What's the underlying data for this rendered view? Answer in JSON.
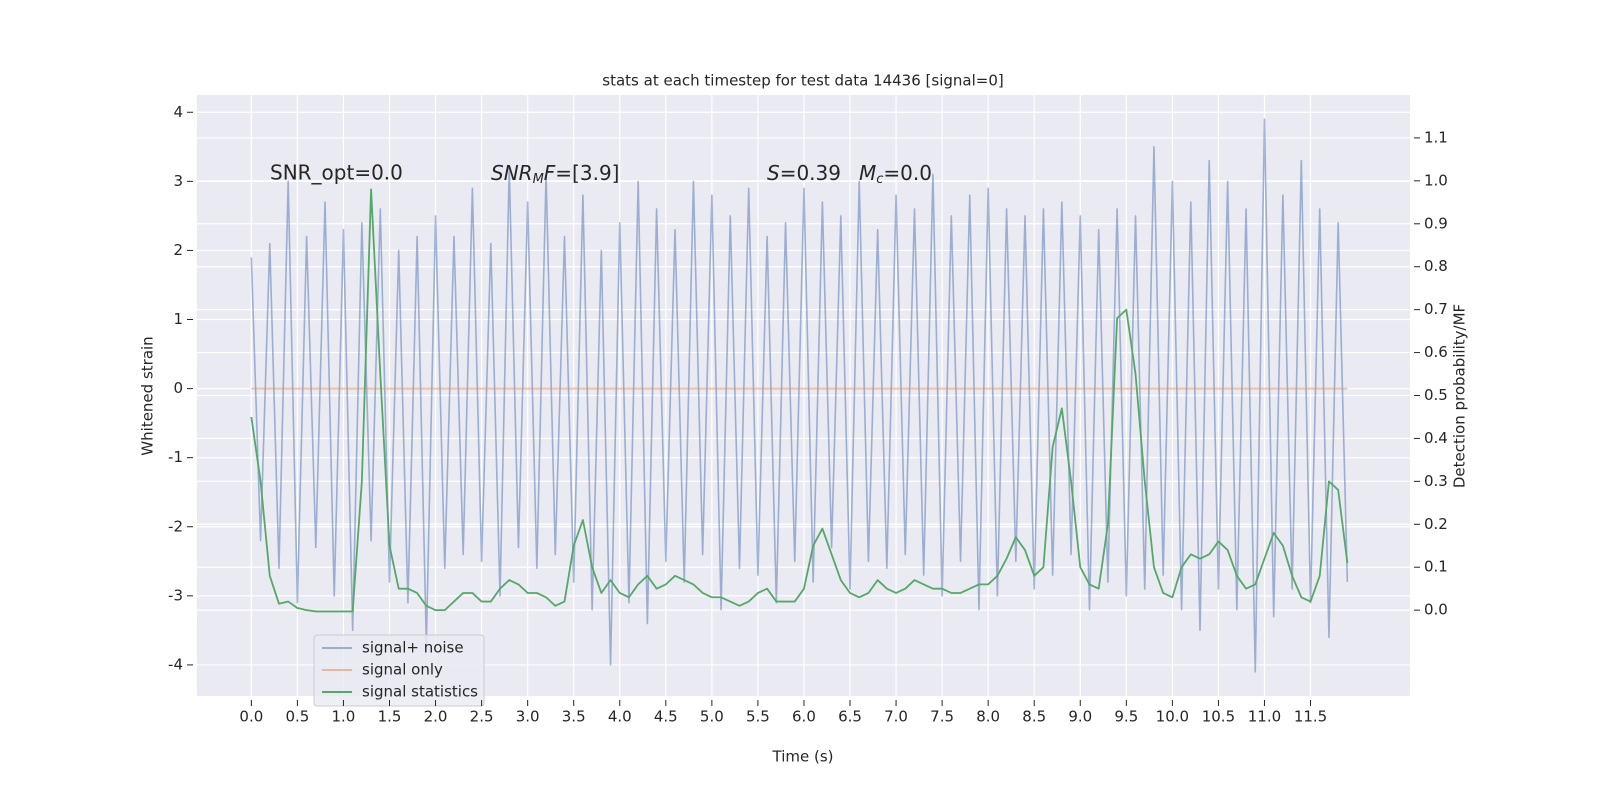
{
  "chart_data": {
    "type": "line",
    "title": "stats at each timestep for test data 14436 [signal=0]",
    "xlabel": "Time (s)",
    "ylabel": "Whitened strain",
    "y2label": "Detection probability/MF",
    "annotations": [
      "SNR_opt=0.0",
      "SNR",
      "M",
      "F",
      "=[3.9]",
      "S",
      "=0.39",
      "M",
      "c",
      "=0.0"
    ],
    "xlim": [
      -0.59,
      12.58
    ],
    "ylim": [
      -4.45,
      4.25
    ],
    "y2lim": [
      -0.2,
      1.2
    ],
    "xticks": [
      {
        "value": 0,
        "label": "0.0"
      },
      0.5,
      {
        "value": 1,
        "label": "1.0"
      },
      1.5,
      {
        "value": 2,
        "label": "2.0"
      },
      2.5,
      {
        "value": 3,
        "label": "3.0"
      },
      3.5,
      {
        "value": 4,
        "label": "4.0"
      },
      4.5,
      {
        "value": 5,
        "label": "5.0"
      },
      5.5,
      {
        "value": 6,
        "label": "6.0"
      },
      6.5,
      {
        "value": 7,
        "label": "7.0"
      },
      7.5,
      {
        "value": 8,
        "label": "8.0"
      },
      8.5,
      {
        "value": 9,
        "label": "9.0"
      },
      9.5,
      {
        "value": 10,
        "label": "10.0"
      },
      10.5,
      {
        "value": 11,
        "label": "11.0"
      },
      11.5
    ],
    "yticks": [
      -4,
      -3,
      -2,
      -1,
      0,
      1,
      2,
      3,
      4
    ],
    "y2ticks": [
      {
        "value": 0,
        "label": "0.0"
      },
      0.1,
      0.2,
      0.3,
      0.4,
      0.5,
      0.6,
      0.7,
      0.8,
      0.9,
      {
        "value": 1,
        "label": "1.0"
      },
      1.1
    ],
    "grid": true,
    "legend": "lower left",
    "x": [
      0.0,
      0.1,
      0.2,
      0.3,
      0.4,
      0.5,
      0.6,
      0.7,
      0.8,
      0.9,
      1.0,
      1.1,
      1.2,
      1.3,
      1.4,
      1.5,
      1.6,
      1.7,
      1.8,
      1.9,
      2.0,
      2.1,
      2.2,
      2.3,
      2.4,
      2.5,
      2.6,
      2.7,
      2.8,
      2.9,
      3.0,
      3.1,
      3.2,
      3.3,
      3.4,
      3.5,
      3.6,
      3.7,
      3.8,
      3.9,
      4.0,
      4.1,
      4.2,
      4.3,
      4.4,
      4.5,
      4.6,
      4.7,
      4.8,
      4.9,
      5.0,
      5.1,
      5.2,
      5.3,
      5.4,
      5.5,
      5.6,
      5.7,
      5.8,
      5.9,
      6.0,
      6.1,
      6.2,
      6.3,
      6.4,
      6.5,
      6.6,
      6.7,
      6.8,
      6.9,
      7.0,
      7.1,
      7.2,
      7.3,
      7.4,
      7.5,
      7.6,
      7.7,
      7.8,
      7.9,
      8.0,
      8.1,
      8.2,
      8.3,
      8.4,
      8.5,
      8.6,
      8.7,
      8.8,
      8.9,
      9.0,
      9.1,
      9.2,
      9.3,
      9.4,
      9.5,
      9.6,
      9.7,
      9.8,
      9.9,
      10.0,
      10.1,
      10.2,
      10.3,
      10.4,
      10.5,
      10.6,
      10.7,
      10.8,
      10.9,
      11.0,
      11.1,
      11.2,
      11.3,
      11.4,
      11.5,
      11.6,
      11.7,
      11.8,
      11.9
    ],
    "series": [
      {
        "name": "signal+ noise",
        "color": "#4c72b0",
        "values": [
          1.9,
          -2.2,
          2.1,
          -2.6,
          3.0,
          -3.1,
          2.2,
          -2.3,
          2.7,
          -3.0,
          2.3,
          -3.5,
          2.4,
          -2.2,
          2.6,
          -2.8,
          2.0,
          -3.1,
          2.2,
          -3.7,
          2.5,
          -2.6,
          2.2,
          -2.4,
          2.9,
          -2.5,
          2.1,
          -3.0,
          3.2,
          -2.3,
          2.7,
          -2.6,
          3.1,
          -2.4,
          2.2,
          -2.8,
          2.8,
          -3.2,
          2.0,
          -4.0,
          2.4,
          -3.1,
          3.0,
          -3.4,
          2.6,
          -2.5,
          2.3,
          -2.8,
          3.0,
          -2.4,
          2.8,
          -3.2,
          2.5,
          -2.6,
          2.9,
          -2.7,
          2.2,
          -3.1,
          2.4,
          -2.5,
          2.9,
          -2.8,
          2.7,
          -2.3,
          2.5,
          -2.9,
          3.0,
          -2.5,
          2.3,
          -2.6,
          2.8,
          -2.4,
          2.6,
          -2.7,
          3.1,
          -3.0,
          2.5,
          -2.5,
          2.8,
          -3.2,
          2.9,
          -3.0,
          2.6,
          -2.5,
          2.5,
          -2.9,
          2.6,
          -2.7,
          2.7,
          -2.4,
          2.5,
          -3.2,
          2.3,
          -2.8,
          2.6,
          -3.0,
          2.5,
          -2.9,
          3.5,
          -2.7,
          3.0,
          -3.2,
          2.7,
          -3.5,
          3.3,
          -2.9,
          3.0,
          -3.2,
          2.6,
          -4.1,
          3.9,
          -3.3,
          2.8,
          -2.9,
          3.3,
          -3.1,
          2.6,
          -3.6,
          2.4,
          -2.8
        ]
      },
      {
        "name": "signal only",
        "color": "#dd8452",
        "values": [
          0,
          0,
          0,
          0,
          0,
          0,
          0,
          0,
          0,
          0,
          0,
          0,
          0,
          0,
          0,
          0,
          0,
          0,
          0,
          0,
          0,
          0,
          0,
          0,
          0,
          0,
          0,
          0,
          0,
          0,
          0,
          0,
          0,
          0,
          0,
          0,
          0,
          0,
          0,
          0,
          0,
          0,
          0,
          0,
          0,
          0,
          0,
          0,
          0,
          0,
          0,
          0,
          0,
          0,
          0,
          0,
          0,
          0,
          0,
          0,
          0,
          0,
          0,
          0,
          0,
          0,
          0,
          0,
          0,
          0,
          0,
          0,
          0,
          0,
          0,
          0,
          0,
          0,
          0,
          0,
          0,
          0,
          0,
          0,
          0,
          0,
          0,
          0,
          0,
          0,
          0,
          0,
          0,
          0,
          0,
          0,
          0,
          0,
          0,
          0,
          0,
          0,
          0,
          0,
          0,
          0,
          0,
          0,
          0,
          0,
          0,
          0,
          0,
          0,
          0,
          0,
          0,
          0,
          0,
          0
        ]
      },
      {
        "name": "signal statistics",
        "color": "#55a868",
        "axis": "y2",
        "values": [
          0.45,
          0.3,
          0.08,
          0.015,
          0.02,
          0.005,
          0.0,
          -0.003,
          -0.003,
          -0.003,
          -0.003,
          -0.003,
          0.3,
          0.98,
          0.55,
          0.15,
          0.05,
          0.05,
          0.04,
          0.01,
          0.0,
          0.0,
          0.02,
          0.04,
          0.04,
          0.02,
          0.02,
          0.05,
          0.07,
          0.06,
          0.04,
          0.04,
          0.03,
          0.01,
          0.02,
          0.15,
          0.21,
          0.1,
          0.04,
          0.07,
          0.04,
          0.03,
          0.06,
          0.08,
          0.05,
          0.06,
          0.08,
          0.07,
          0.06,
          0.04,
          0.03,
          0.03,
          0.02,
          0.01,
          0.02,
          0.04,
          0.05,
          0.02,
          0.02,
          0.02,
          0.05,
          0.15,
          0.19,
          0.13,
          0.07,
          0.04,
          0.03,
          0.04,
          0.07,
          0.05,
          0.04,
          0.05,
          0.07,
          0.06,
          0.05,
          0.05,
          0.04,
          0.04,
          0.05,
          0.06,
          0.06,
          0.08,
          0.12,
          0.17,
          0.14,
          0.08,
          0.1,
          0.38,
          0.47,
          0.3,
          0.1,
          0.06,
          0.05,
          0.2,
          0.68,
          0.7,
          0.55,
          0.3,
          0.1,
          0.04,
          0.03,
          0.1,
          0.13,
          0.12,
          0.13,
          0.16,
          0.14,
          0.08,
          0.05,
          0.06,
          0.12,
          0.18,
          0.15,
          0.08,
          0.03,
          0.02,
          0.08,
          0.3,
          0.28,
          0.11
        ]
      }
    ]
  }
}
